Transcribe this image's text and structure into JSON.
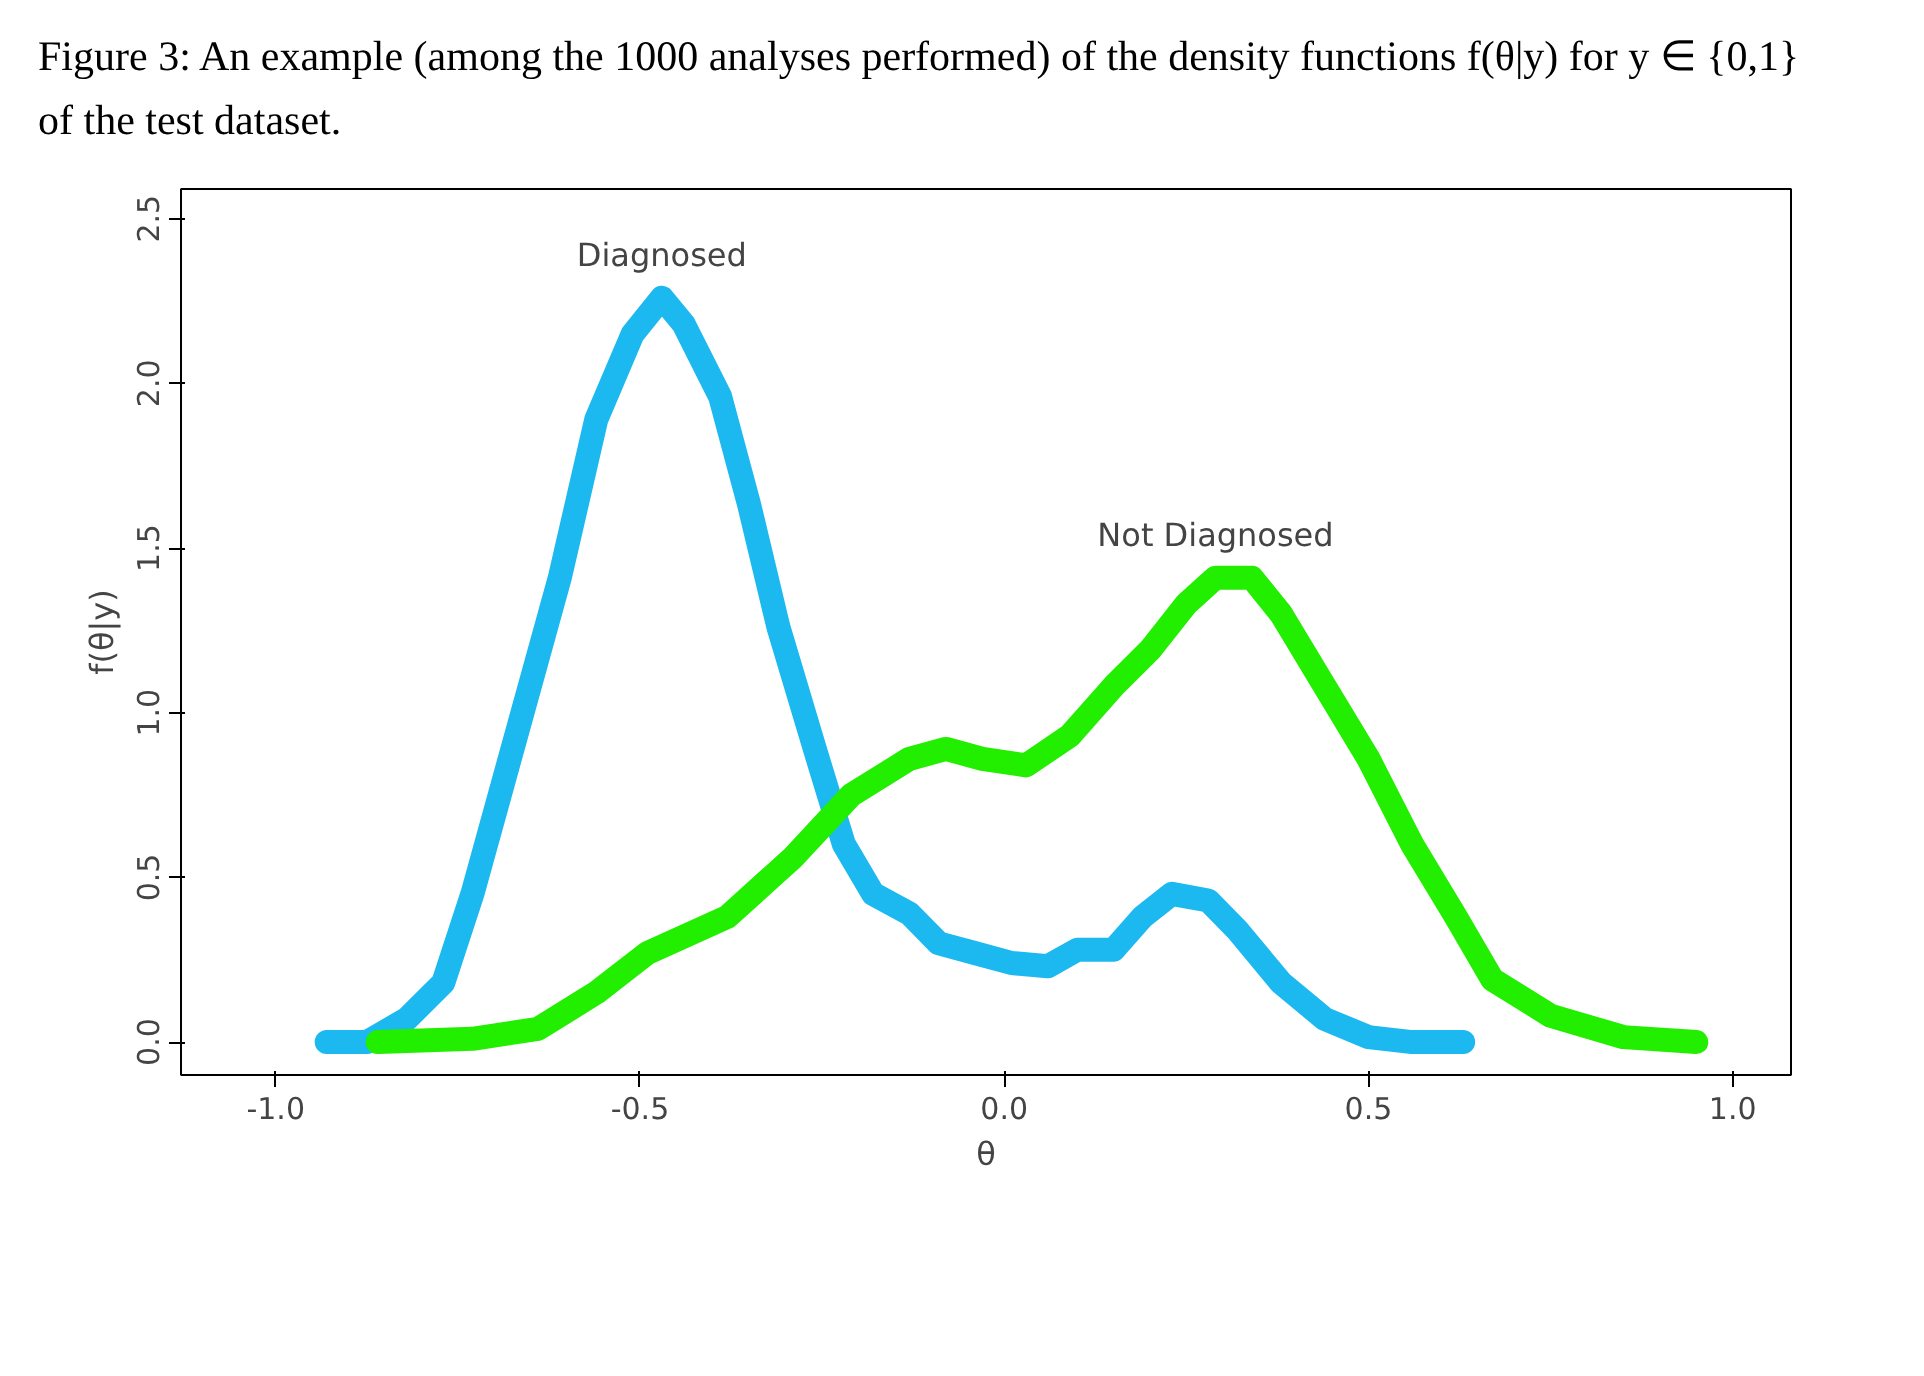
{
  "chart_data": {
    "type": "line",
    "title": "Figure 3: An example (among the 1000 analyses performed) of the density functions f(θ|y) for y ∈ {0,1} of the test dataset.",
    "xlabel": "θ",
    "ylabel": "f(θ|y)",
    "xlim": [
      -1.13,
      1.08
    ],
    "ylim": [
      -0.1,
      2.59
    ],
    "xticks": [
      {
        "value": -1.0,
        "label": "-1.0"
      },
      {
        "value": -0.5,
        "label": "-0.5"
      },
      {
        "value": 0.0,
        "label": "0.0"
      },
      {
        "value": 0.5,
        "label": "0.5"
      },
      {
        "value": 1.0,
        "label": "1.0"
      }
    ],
    "yticks": [
      {
        "value": 0.0,
        "label": "0.0"
      },
      {
        "value": 0.5,
        "label": "0.5"
      },
      {
        "value": 1.0,
        "label": "1.0"
      },
      {
        "value": 1.5,
        "label": "1.5"
      },
      {
        "value": 2.0,
        "label": "2.0"
      },
      {
        "value": 2.5,
        "label": "2.5"
      }
    ],
    "grid": false,
    "series": [
      {
        "name": "Diagnosed",
        "color": "#1cb8f0",
        "x": [
          -0.93,
          -0.875,
          -0.82,
          -0.77,
          -0.73,
          -0.67,
          -0.61,
          -0.56,
          -0.51,
          -0.47,
          -0.44,
          -0.39,
          -0.35,
          -0.31,
          -0.26,
          -0.22,
          -0.18,
          -0.13,
          -0.09,
          -0.04,
          0.01,
          0.06,
          0.1,
          0.15,
          0.19,
          0.23,
          0.28,
          0.32,
          0.38,
          0.44,
          0.5,
          0.56,
          0.63
        ],
        "values": [
          0,
          0,
          0.07,
          0.18,
          0.45,
          0.93,
          1.41,
          1.89,
          2.15,
          2.26,
          2.18,
          1.96,
          1.63,
          1.26,
          0.89,
          0.6,
          0.45,
          0.39,
          0.3,
          0.27,
          0.24,
          0.23,
          0.28,
          0.28,
          0.38,
          0.45,
          0.43,
          0.34,
          0.18,
          0.07,
          0.015,
          0,
          0
        ]
      },
      {
        "name": "Not Diagnosed",
        "color": "#22ee00",
        "x": [
          -0.86,
          -0.73,
          -0.64,
          -0.56,
          -0.49,
          -0.38,
          -0.29,
          -0.21,
          -0.13,
          -0.08,
          -0.03,
          0.03,
          0.09,
          0.15,
          0.2,
          0.25,
          0.29,
          0.34,
          0.38,
          0.44,
          0.5,
          0.56,
          0.62,
          0.67,
          0.75,
          0.85,
          0.95
        ],
        "values": [
          0,
          0.01,
          0.04,
          0.15,
          0.27,
          0.38,
          0.56,
          0.75,
          0.86,
          0.89,
          0.86,
          0.84,
          0.93,
          1.08,
          1.19,
          1.33,
          1.41,
          1.41,
          1.3,
          1.08,
          0.86,
          0.6,
          0.38,
          0.19,
          0.08,
          0.015,
          0
        ]
      }
    ],
    "line_style": "solid"
  }
}
